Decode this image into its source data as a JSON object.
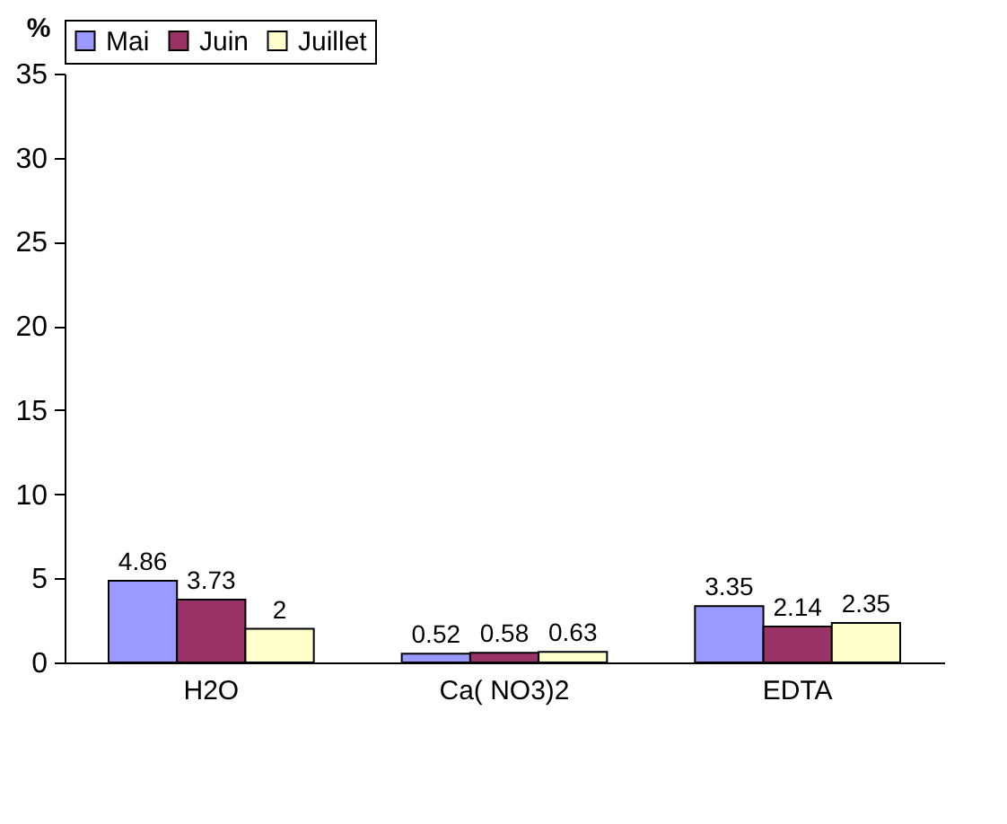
{
  "chart_data": {
    "type": "bar",
    "ylabel": "%",
    "categories": [
      "H2O",
      "Ca( NO3)2",
      "EDTA"
    ],
    "series": [
      {
        "name": "Mai",
        "color": "#9999ff",
        "values": [
          4.86,
          0.52,
          3.35
        ]
      },
      {
        "name": "Juin",
        "color": "#993366",
        "values": [
          3.73,
          0.58,
          2.14
        ]
      },
      {
        "name": "Juillet",
        "color": "#ffffcc",
        "values": [
          2,
          0.63,
          2.35
        ]
      }
    ],
    "ylim": [
      0,
      35
    ],
    "yticks": [
      0,
      5,
      10,
      15,
      20,
      25,
      30,
      35
    ],
    "grid": false,
    "legend": "top",
    "data_labels": true
  }
}
